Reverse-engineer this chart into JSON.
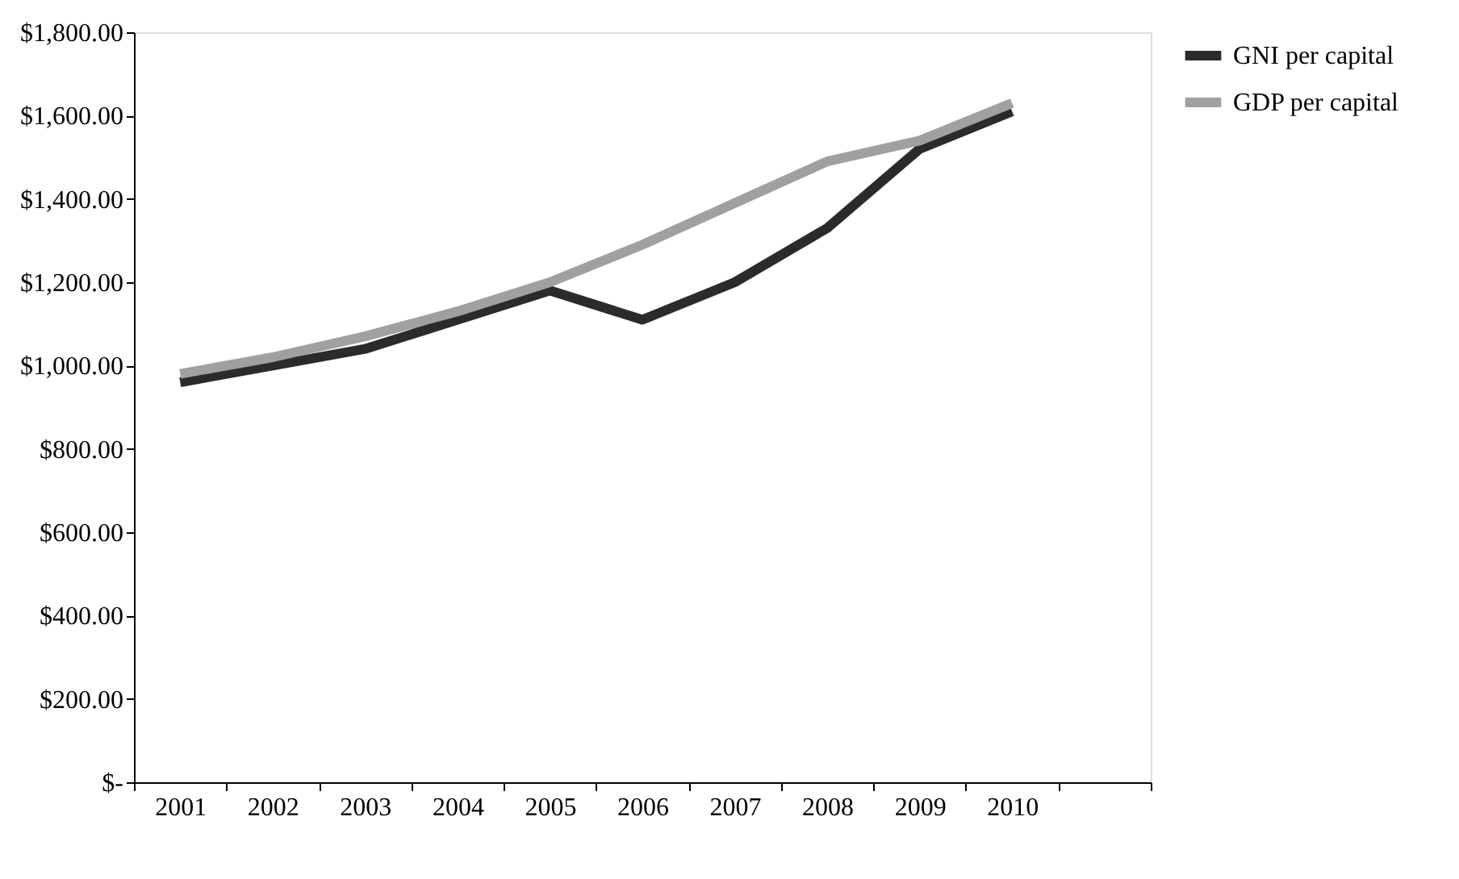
{
  "chart_data": {
    "type": "line",
    "categories": [
      "2001",
      "2002",
      "2003",
      "2004",
      "2005",
      "2006",
      "2007",
      "2008",
      "2009",
      "2010",
      null
    ],
    "series": [
      {
        "name": "GNI per capital",
        "color": "#2b2b2b",
        "values": [
          960,
          1000,
          1040,
          1110,
          1180,
          1110,
          1200,
          1330,
          1520,
          1610,
          null
        ]
      },
      {
        "name": "GDP per capital",
        "color": "#a0a0a0",
        "values": [
          980,
          1020,
          1070,
          1130,
          1200,
          1290,
          1390,
          1490,
          1540,
          1630,
          null
        ]
      }
    ],
    "ylim": [
      0,
      1800
    ],
    "yticks": [
      {
        "value": 0,
        "label": "$-"
      },
      {
        "value": 200,
        "label": "$200.00"
      },
      {
        "value": 400,
        "label": "$400.00"
      },
      {
        "value": 600,
        "label": "$600.00"
      },
      {
        "value": 800,
        "label": "$800.00"
      },
      {
        "value": 1000,
        "label": "$1,000.00"
      },
      {
        "value": 1200,
        "label": "$1,200.00"
      },
      {
        "value": 1400,
        "label": "$1,400.00"
      },
      {
        "value": 1600,
        "label": "$1,600.00"
      },
      {
        "value": 1800,
        "label": "$1,800.00"
      }
    ],
    "grid": false,
    "legend": "right",
    "marker": "none",
    "line_style": "solid"
  }
}
